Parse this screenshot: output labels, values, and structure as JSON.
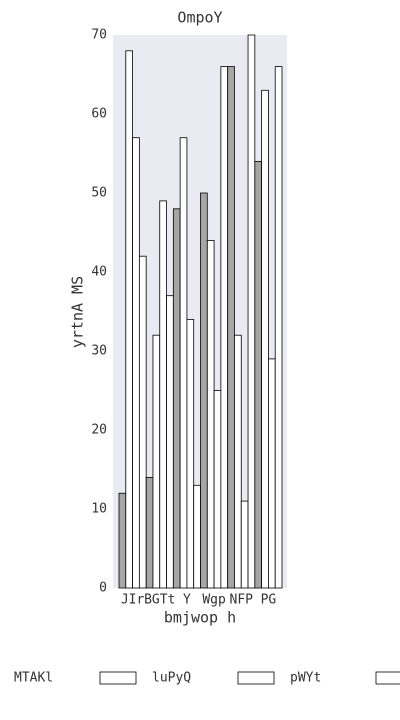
{
  "chart_data": {
    "type": "bar",
    "title": "OmpoY",
    "xlabel": "bmjwop h",
    "ylabel": "yrtnA MS",
    "categories": [
      "JIr",
      "BGTt",
      "Y",
      "Wgp",
      "NFP",
      "PG"
    ],
    "series": [
      {
        "name": "MTAKl",
        "color": "#a6a6a6",
        "values": [
          12,
          14,
          48,
          50,
          66,
          54
        ]
      },
      {
        "name": "luPyQ",
        "color": "#ffffff",
        "values": [
          68,
          32,
          57,
          44,
          32,
          63
        ]
      },
      {
        "name": "pWYt",
        "color": "#ffffff",
        "values": [
          57,
          49,
          34,
          25,
          11,
          29
        ]
      },
      {
        "name": null,
        "color": "#ffffff",
        "values": [
          42,
          37,
          13,
          66,
          70,
          66
        ]
      }
    ],
    "ylim": [
      0,
      70
    ],
    "yticks": [
      0,
      10,
      20,
      30,
      40,
      50,
      60,
      70
    ],
    "background": "#eaeaf2"
  }
}
